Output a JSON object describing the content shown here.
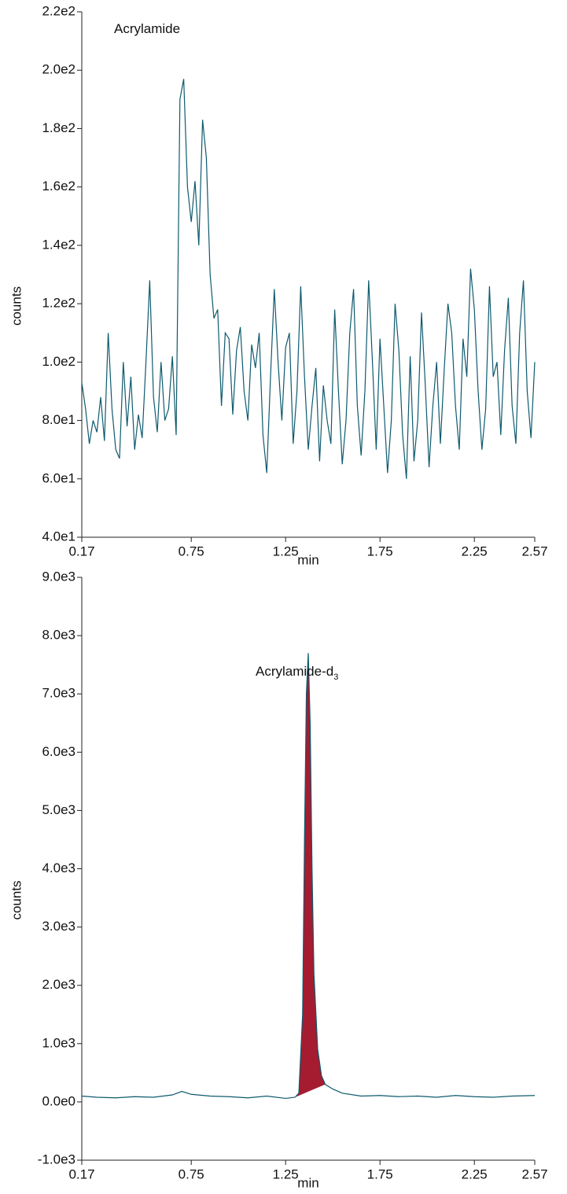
{
  "chart_data": [
    {
      "type": "line",
      "annotation": "Acrylamide",
      "xlabel": "min",
      "ylabel": "counts",
      "xlim": [
        0.17,
        2.57
      ],
      "xticks": [
        0.17,
        0.75,
        1.25,
        1.75,
        2.25,
        2.57
      ],
      "ylim": [
        40,
        220
      ],
      "yticks": [
        {
          "value": 40,
          "label": "4.0e1"
        },
        {
          "value": 60,
          "label": "6.0e1"
        },
        {
          "value": 80,
          "label": "8.0e1"
        },
        {
          "value": 100,
          "label": "1.0e2"
        },
        {
          "value": 120,
          "label": "1.2e2"
        },
        {
          "value": 140,
          "label": "1.4e2"
        },
        {
          "value": 160,
          "label": "1.6e2"
        },
        {
          "value": 180,
          "label": "1.8e2"
        },
        {
          "value": 200,
          "label": "2.0e2"
        },
        {
          "value": 220,
          "label": "2.2e2"
        }
      ],
      "x": [
        0.17,
        0.19,
        0.21,
        0.23,
        0.25,
        0.27,
        0.29,
        0.31,
        0.33,
        0.35,
        0.37,
        0.39,
        0.41,
        0.43,
        0.45,
        0.47,
        0.49,
        0.51,
        0.53,
        0.55,
        0.57,
        0.59,
        0.61,
        0.63,
        0.65,
        0.67,
        0.69,
        0.71,
        0.73,
        0.75,
        0.77,
        0.79,
        0.81,
        0.83,
        0.85,
        0.87,
        0.89,
        0.91,
        0.93,
        0.95,
        0.97,
        0.99,
        1.01,
        1.03,
        1.05,
        1.07,
        1.09,
        1.11,
        1.13,
        1.15,
        1.17,
        1.19,
        1.21,
        1.23,
        1.25,
        1.27,
        1.29,
        1.31,
        1.33,
        1.35,
        1.37,
        1.39,
        1.41,
        1.43,
        1.45,
        1.47,
        1.49,
        1.51,
        1.53,
        1.55,
        1.57,
        1.59,
        1.61,
        1.63,
        1.65,
        1.67,
        1.69,
        1.71,
        1.73,
        1.75,
        1.77,
        1.79,
        1.81,
        1.83,
        1.85,
        1.87,
        1.89,
        1.91,
        1.93,
        1.95,
        1.97,
        1.99,
        2.01,
        2.03,
        2.05,
        2.07,
        2.09,
        2.11,
        2.13,
        2.15,
        2.17,
        2.19,
        2.21,
        2.23,
        2.25,
        2.27,
        2.29,
        2.31,
        2.33,
        2.35,
        2.37,
        2.39,
        2.41,
        2.43,
        2.45,
        2.47,
        2.49,
        2.51,
        2.53,
        2.55,
        2.57
      ],
      "series": [
        {
          "color": "#0e5a6e",
          "values": [
            93,
            84,
            72,
            80,
            76,
            88,
            73,
            110,
            84,
            70,
            67,
            100,
            78,
            95,
            70,
            82,
            74,
            100,
            128,
            88,
            76,
            100,
            80,
            84,
            102,
            75,
            190,
            197,
            160,
            148,
            162,
            140,
            183,
            170,
            130,
            115,
            118,
            85,
            110,
            108,
            82,
            104,
            112,
            90,
            80,
            106,
            98,
            110,
            75,
            62,
            95,
            125,
            100,
            80,
            105,
            110,
            72,
            90,
            126,
            95,
            70,
            85,
            98,
            66,
            92,
            80,
            72,
            118,
            90,
            65,
            80,
            110,
            125,
            85,
            68,
            90,
            128,
            100,
            70,
            108,
            85,
            62,
            80,
            120,
            104,
            75,
            60,
            102,
            66,
            80,
            117,
            92,
            64,
            85,
            100,
            72,
            97,
            120,
            110,
            85,
            70,
            108,
            95,
            132,
            118,
            90,
            70,
            84,
            126,
            95,
            100,
            75,
            104,
            122,
            85,
            72,
            110,
            128,
            90,
            74,
            100
          ]
        }
      ]
    },
    {
      "type": "line",
      "annotation": "Acrylamide-d",
      "annotation_sub": "3",
      "xlabel": "min",
      "ylabel": "counts",
      "xlim": [
        0.17,
        2.57
      ],
      "xticks": [
        0.17,
        0.75,
        1.25,
        1.75,
        2.25,
        2.57
      ],
      "ylim": [
        -1000,
        9000
      ],
      "yticks": [
        {
          "value": -1000,
          "label": "-1.0e3"
        },
        {
          "value": 0,
          "label": "0.0e0"
        },
        {
          "value": 1000,
          "label": "1.0e3"
        },
        {
          "value": 2000,
          "label": "2.0e3"
        },
        {
          "value": 3000,
          "label": "3.0e3"
        },
        {
          "value": 4000,
          "label": "4.0e3"
        },
        {
          "value": 5000,
          "label": "5.0e3"
        },
        {
          "value": 6000,
          "label": "6.0e3"
        },
        {
          "value": 7000,
          "label": "7.0e3"
        },
        {
          "value": 8000,
          "label": "8.0e3"
        },
        {
          "value": 9000,
          "label": "9.0e3"
        }
      ],
      "x": [
        0.17,
        0.25,
        0.35,
        0.45,
        0.55,
        0.65,
        0.7,
        0.75,
        0.85,
        0.95,
        1.05,
        1.15,
        1.25,
        1.3,
        1.32,
        1.34,
        1.35,
        1.36,
        1.37,
        1.38,
        1.39,
        1.4,
        1.42,
        1.44,
        1.46,
        1.5,
        1.55,
        1.65,
        1.75,
        1.85,
        1.95,
        2.05,
        2.15,
        2.25,
        2.35,
        2.45,
        2.57
      ],
      "series": [
        {
          "color": "#0e5a6e",
          "values": [
            100,
            80,
            70,
            90,
            80,
            120,
            180,
            130,
            100,
            90,
            70,
            100,
            60,
            80,
            150,
            1500,
            4500,
            7000,
            7700,
            6500,
            4000,
            2200,
            900,
            450,
            300,
            220,
            150,
            100,
            110,
            90,
            100,
            80,
            110,
            90,
            80,
            100,
            110
          ]
        }
      ],
      "integration": {
        "start": 1.3,
        "end": 1.46,
        "color": "#a51c30"
      }
    }
  ]
}
